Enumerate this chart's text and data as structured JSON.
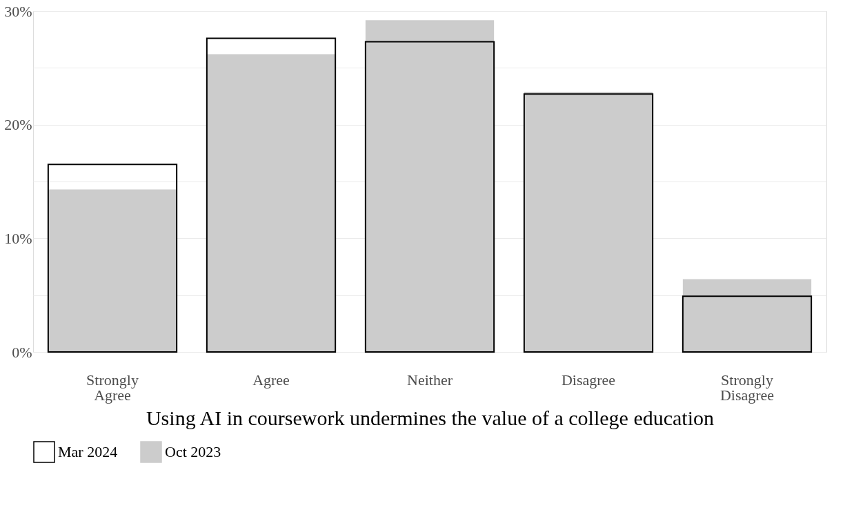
{
  "chart_data": {
    "type": "bar",
    "categories": [
      "Strongly Agree",
      "Agree",
      "Neither",
      "Disagree",
      "Strongly Disagree"
    ],
    "series": [
      {
        "name": "Mar 2024",
        "color": "#000000",
        "values": [
          16.5,
          27.6,
          27.3,
          22.7,
          4.9
        ]
      },
      {
        "name": "Oct 2023",
        "color": "#cccccc",
        "values": [
          14.3,
          26.2,
          29.2,
          22.9,
          6.4
        ]
      }
    ],
    "xlabel": "Using AI in coursework undermines the value of a college education",
    "ylim": [
      0,
      30
    ],
    "yticks": [
      {
        "value": 0,
        "label": "0%"
      },
      {
        "value": 5,
        "label": null
      },
      {
        "value": 10,
        "label": "10%"
      },
      {
        "value": 15,
        "label": null
      },
      {
        "value": 20,
        "label": "20%"
      },
      {
        "value": 25,
        "label": null
      },
      {
        "value": 30,
        "label": "30%"
      }
    ],
    "grid": "y",
    "legend": "bottom"
  }
}
